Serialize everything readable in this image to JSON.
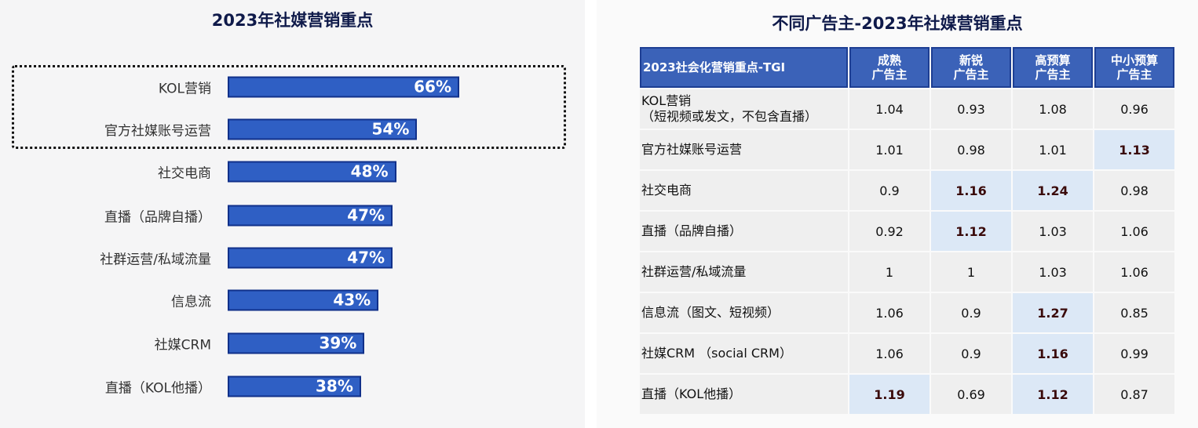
{
  "chart_data": [
    {
      "type": "bar",
      "orientation": "horizontal",
      "title": "2023年社媒营销重点",
      "categories": [
        "KOL营销",
        "官方社媒账号运营",
        "社交电商",
        "直播（品牌自播）",
        "社群运营/私域流量",
        "信息流",
        "社媒CRM",
        "直播（KOL他播）"
      ],
      "values": [
        66,
        54,
        48,
        47,
        47,
        43,
        39,
        38
      ],
      "value_labels": [
        "66%",
        "54%",
        "48%",
        "47%",
        "47%",
        "43%",
        "39%",
        "38%"
      ],
      "highlighted_categories": [
        "KOL营销",
        "官方社媒账号运营"
      ],
      "colors": {
        "bar": "#2f5fc4",
        "bar_border": "#10308a"
      }
    },
    {
      "type": "table",
      "title": "不同广告主-2023年社媒营销重点",
      "header": [
        "2023社会化营销重点-TGI",
        "成熟\n广告主",
        "新锐\n广告主",
        "高预算\n广告主",
        "中小预算\n广告主"
      ],
      "rows": [
        {
          "label": "KOL营销\n（短视频或发文，不包含直播）",
          "values": [
            "1.04",
            "0.93",
            "1.08",
            "0.96"
          ],
          "highlight": [
            false,
            false,
            false,
            false
          ]
        },
        {
          "label": "官方社媒账号运营",
          "values": [
            "1.01",
            "0.98",
            "1.01",
            "1.13"
          ],
          "highlight": [
            false,
            false,
            false,
            true
          ]
        },
        {
          "label": "社交电商",
          "values": [
            "0.9",
            "1.16",
            "1.24",
            "0.98"
          ],
          "highlight": [
            false,
            true,
            true,
            false
          ]
        },
        {
          "label": "直播（品牌自播）",
          "values": [
            "0.92",
            "1.12",
            "1.03",
            "1.06"
          ],
          "highlight": [
            false,
            true,
            false,
            false
          ]
        },
        {
          "label": "社群运营/私域流量",
          "values": [
            "1",
            "1",
            "1.03",
            "1.06"
          ],
          "highlight": [
            false,
            false,
            false,
            false
          ]
        },
        {
          "label": "信息流（图文、短视频）",
          "values": [
            "1.06",
            "0.9",
            "1.27",
            "0.85"
          ],
          "highlight": [
            false,
            false,
            true,
            false
          ]
        },
        {
          "label": "社媒CRM （social CRM）",
          "values": [
            "1.06",
            "0.9",
            "1.16",
            "0.99"
          ],
          "highlight": [
            false,
            false,
            true,
            false
          ]
        },
        {
          "label": "直播（KOL他播）",
          "values": [
            "1.19",
            "0.69",
            "1.12",
            "0.87"
          ],
          "highlight": [
            true,
            false,
            true,
            false
          ]
        }
      ],
      "colors": {
        "header": "#3b62b8",
        "highlight": "#dce8f6",
        "cell": "#efefef"
      }
    }
  ]
}
